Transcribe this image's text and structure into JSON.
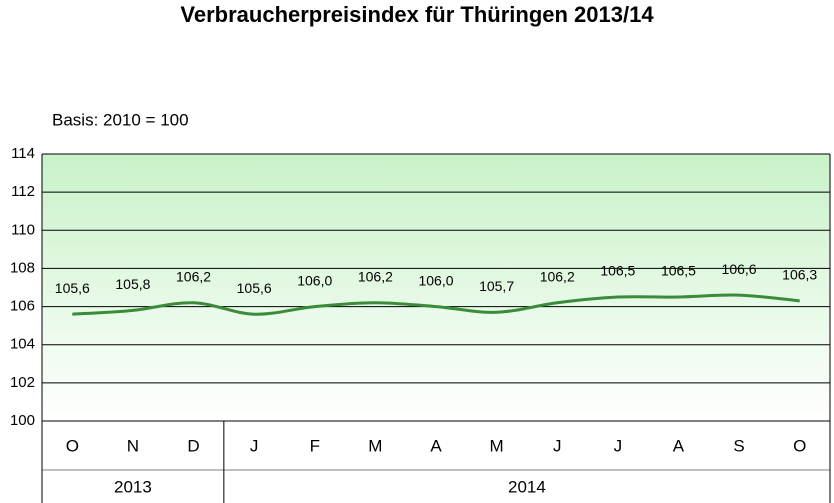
{
  "chart_data": {
    "type": "line",
    "title": "Verbraucherpreisindex für Thüringen 2013/14",
    "subtitle": "Basis: 2010 = 100",
    "categories": [
      "O",
      "N",
      "D",
      "J",
      "F",
      "M",
      "A",
      "M",
      "J",
      "J",
      "A",
      "S",
      "O"
    ],
    "groups": [
      {
        "label": "2013",
        "count": 3
      },
      {
        "label": "2014",
        "count": 10
      }
    ],
    "series": [
      {
        "color": "#3b8b3b",
        "values": [
          105.6,
          105.8,
          106.2,
          105.6,
          106.0,
          106.2,
          106.0,
          105.7,
          106.2,
          106.5,
          106.5,
          106.6,
          106.3
        ],
        "value_labels": [
          "105,6",
          "105,8",
          "106,2",
          "105,6",
          "106,0",
          "106,2",
          "106,0",
          "105,7",
          "106,2",
          "106,5",
          "106,5",
          "106,6",
          "106,3"
        ]
      }
    ],
    "ylim": [
      100,
      114
    ],
    "yticks": [
      100,
      102,
      104,
      106,
      108,
      110,
      112,
      114
    ],
    "grid": true
  }
}
